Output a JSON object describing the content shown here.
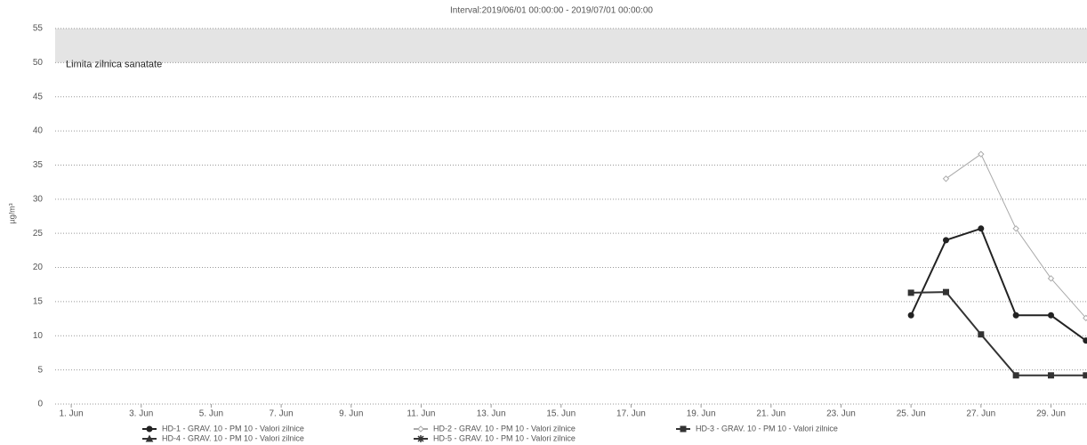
{
  "chart_data": {
    "type": "line",
    "title": "Interval:2019/06/01 00:00:00 - 2019/07/01 00:00:00",
    "y_label": "µg/m³",
    "x": [
      25,
      26,
      27,
      28,
      29,
      30
    ],
    "xlim": [
      0.54,
      30.03
    ],
    "xticks": [
      {
        "value": 1,
        "label": "1. Jun"
      },
      {
        "value": 3,
        "label": "3. Jun"
      },
      {
        "value": 5,
        "label": "5. Jun"
      },
      {
        "value": 7,
        "label": "7. Jun"
      },
      {
        "value": 9,
        "label": "9. Jun"
      },
      {
        "value": 11,
        "label": "11. Jun"
      },
      {
        "value": 13,
        "label": "13. Jun"
      },
      {
        "value": 15,
        "label": "15. Jun"
      },
      {
        "value": 17,
        "label": "17. Jun"
      },
      {
        "value": 19,
        "label": "19. Jun"
      },
      {
        "value": 21,
        "label": "21. Jun"
      },
      {
        "value": 23,
        "label": "23. Jun"
      },
      {
        "value": 25,
        "label": "25. Jun"
      },
      {
        "value": 27,
        "label": "27. Jun"
      },
      {
        "value": 29,
        "label": "29. Jun"
      }
    ],
    "ylim": [
      0,
      55
    ],
    "yticks": [
      0,
      5,
      10,
      15,
      20,
      25,
      30,
      35,
      40,
      45,
      50,
      55
    ],
    "grid": true,
    "plot_bands": [
      {
        "from": 50,
        "to": 55,
        "label": "Limita zilnica sanatate",
        "color": "#e4e4e4"
      }
    ],
    "series": [
      {
        "name": "HD-1 - GRAV. 10 - PM 10 - Valori zilnice",
        "color": "#222222",
        "marker": "circle",
        "values": [
          13,
          24,
          25.7,
          13,
          13,
          9.3
        ]
      },
      {
        "name": "HD-2 - GRAV. 10 - PM 10 - Valori zilnice",
        "color": "#aaaaaa",
        "marker": "diamond",
        "values": [
          null,
          33,
          36.6,
          25.7,
          18.4,
          12.6
        ]
      },
      {
        "name": "HD-3 - GRAV. 10 - PM 10 - Valori zilnice",
        "color": "#333333",
        "marker": "square",
        "values": [
          16.3,
          16.4,
          10.2,
          4.2,
          4.2,
          4.2
        ]
      },
      {
        "name": "HD-4 - GRAV. 10 - PM 10 - Valori zilnice",
        "color": "#333333",
        "marker": "triangle",
        "values": [
          null,
          null,
          null,
          null,
          null,
          null
        ]
      },
      {
        "name": "HD-5 - GRAV. 10 - PM 10 - Valori zilnice",
        "color": "#333333",
        "marker": "star",
        "values": [
          null,
          null,
          null,
          null,
          null,
          null
        ]
      }
    ]
  }
}
